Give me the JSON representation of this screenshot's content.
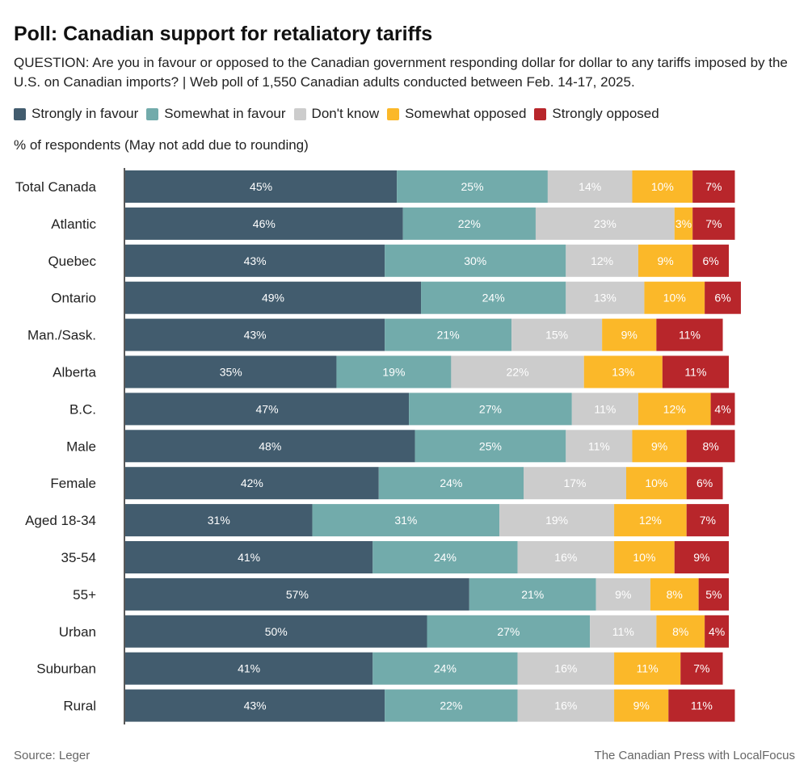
{
  "title": "Poll: Canadian support for retaliatory tariffs",
  "subtitle": "QUESTION: Are you in favour or opposed to the Canadian government responding dollar for dollar to any tariffs imposed by the U.S. on Canadian imports? | Web poll of 1,550 Canadian adults conducted between Feb. 14-17, 2025.",
  "unit_note": "% of respondents (May not add due to rounding)",
  "source": "Source:  Leger",
  "credit": "The Canadian Press with LocalFocus",
  "chart_data": {
    "type": "bar",
    "orientation": "horizontal",
    "stacked": true,
    "legend_position": "top-left",
    "grid": false,
    "xlim": [
      0,
      100
    ],
    "categories": [
      "Total Canada",
      "Atlantic",
      "Quebec",
      "Ontario",
      "Man./Sask.",
      "Alberta",
      "B.C.",
      "Male",
      "Female",
      "Aged 18-34",
      "35-54",
      "55+",
      "Urban",
      "Suburban",
      "Rural"
    ],
    "series": [
      {
        "name": "Strongly in favour",
        "color": "#425c6e",
        "values": [
          45,
          46,
          43,
          49,
          43,
          35,
          47,
          48,
          42,
          31,
          41,
          57,
          50,
          41,
          43
        ]
      },
      {
        "name": "Somewhat in favour",
        "color": "#72abab",
        "values": [
          25,
          22,
          30,
          24,
          21,
          19,
          27,
          25,
          24,
          31,
          24,
          21,
          27,
          24,
          22
        ]
      },
      {
        "name": "Don't know",
        "color": "#cccccc",
        "values": [
          14,
          23,
          12,
          13,
          15,
          22,
          11,
          11,
          17,
          19,
          16,
          9,
          11,
          16,
          16
        ]
      },
      {
        "name": "Somewhat opposed",
        "color": "#fbb829",
        "values": [
          10,
          3,
          9,
          10,
          9,
          13,
          12,
          9,
          10,
          12,
          10,
          8,
          8,
          11,
          9
        ]
      },
      {
        "name": "Strongly opposed",
        "color": "#b8262b",
        "values": [
          7,
          7,
          6,
          6,
          11,
          11,
          4,
          8,
          6,
          7,
          9,
          5,
          4,
          7,
          11
        ]
      }
    ]
  }
}
